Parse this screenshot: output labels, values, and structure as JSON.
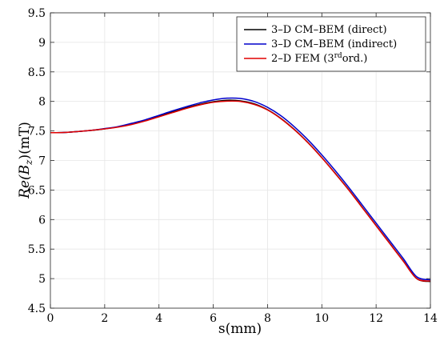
{
  "chart_data": {
    "type": "line",
    "xlabel": "s(mm)",
    "ylabel": "Re(Bz)(mT)",
    "ylabel_parts": {
      "pre": "Re(",
      "var": "B",
      "sub": "z",
      "post": ")(mT)"
    },
    "xlim": [
      0,
      14
    ],
    "ylim": [
      4.5,
      9.5
    ],
    "x_ticks": [
      "0",
      "2",
      "4",
      "6",
      "8",
      "10",
      "12",
      "14"
    ],
    "y_ticks": [
      "4.5",
      "5",
      "5.5",
      "6",
      "6.5",
      "7",
      "7.5",
      "8",
      "8.5",
      "9",
      "9.5"
    ],
    "grid": true,
    "legend_position": "top-right",
    "series": [
      {
        "name": "3–D CM–BEM (direct)",
        "color": "#000000",
        "x": [
          0,
          0.5,
          1,
          1.5,
          2,
          2.5,
          3,
          3.5,
          4,
          4.5,
          5,
          5.5,
          6,
          6.5,
          7,
          7.5,
          8,
          8.5,
          9,
          9.5,
          10,
          10.5,
          11,
          11.5,
          12,
          12.5,
          13,
          13.5,
          14
        ],
        "y": [
          7.47,
          7.475,
          7.49,
          7.51,
          7.535,
          7.57,
          7.62,
          7.68,
          7.75,
          7.82,
          7.89,
          7.95,
          7.995,
          8.02,
          8.01,
          7.96,
          7.86,
          7.71,
          7.52,
          7.3,
          7.05,
          6.78,
          6.5,
          6.2,
          5.9,
          5.6,
          5.3,
          5.0,
          4.95
        ]
      },
      {
        "name": "3–D CM–BEM (indirect)",
        "color": "#0000cc",
        "x": [
          0,
          0.5,
          1,
          1.5,
          2,
          2.5,
          3,
          3.5,
          4,
          4.5,
          5,
          5.5,
          6,
          6.5,
          7,
          7.5,
          8,
          8.5,
          9,
          9.5,
          10,
          10.5,
          11,
          11.5,
          12,
          12.5,
          13,
          13.5,
          14
        ],
        "y": [
          7.47,
          7.475,
          7.49,
          7.51,
          7.54,
          7.575,
          7.63,
          7.69,
          7.765,
          7.84,
          7.91,
          7.975,
          8.025,
          8.055,
          8.05,
          8.0,
          7.9,
          7.755,
          7.565,
          7.345,
          7.095,
          6.825,
          6.54,
          6.24,
          5.94,
          5.64,
          5.34,
          5.03,
          4.98
        ]
      },
      {
        "name": "2–D FEM (3rdord.)",
        "name_parts": {
          "pre": "2–D FEM (3",
          "sup": "rd",
          "post": "ord.)"
        },
        "color": "#e00000",
        "x": [
          0,
          0.5,
          1,
          1.5,
          2,
          2.5,
          3,
          3.5,
          4,
          4.5,
          5,
          5.5,
          6,
          6.5,
          7,
          7.5,
          8,
          8.5,
          9,
          9.5,
          10,
          10.5,
          11,
          11.5,
          12,
          12.5,
          13,
          13.5,
          14
        ],
        "y": [
          7.47,
          7.475,
          7.49,
          7.51,
          7.535,
          7.565,
          7.61,
          7.67,
          7.74,
          7.81,
          7.88,
          7.94,
          7.985,
          8.005,
          8.0,
          7.95,
          7.855,
          7.705,
          7.515,
          7.295,
          7.045,
          6.775,
          6.495,
          6.195,
          5.895,
          5.595,
          5.295,
          5.0,
          4.96
        ]
      }
    ]
  }
}
